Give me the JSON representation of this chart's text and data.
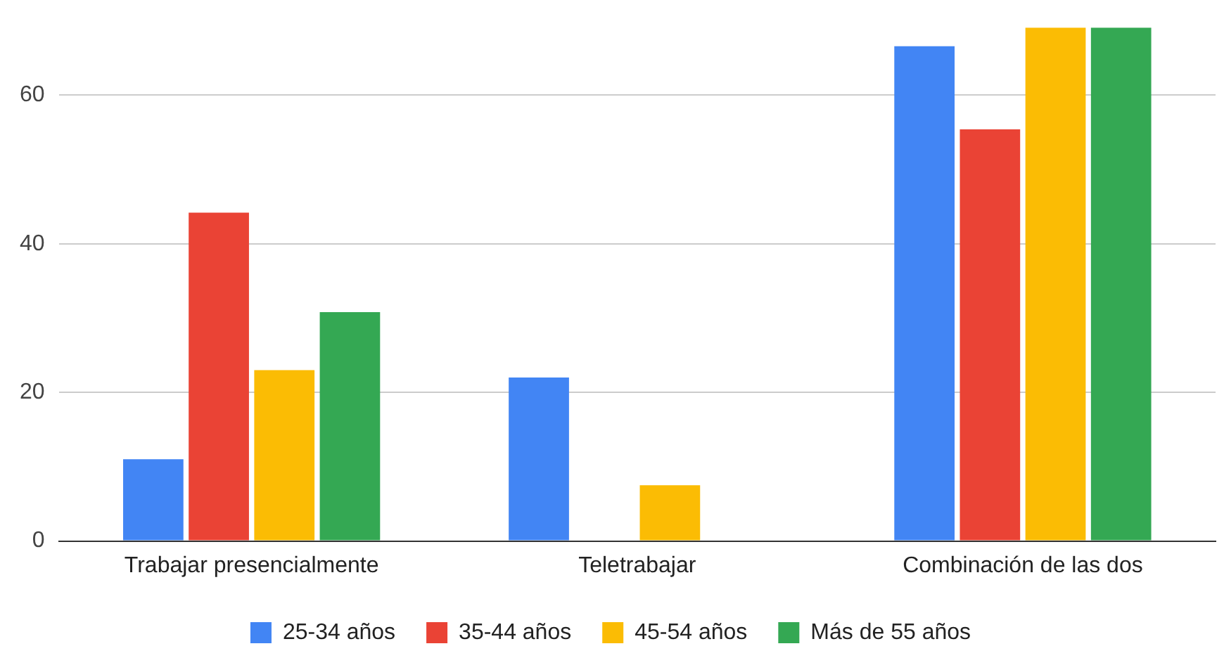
{
  "chart_data": {
    "type": "bar",
    "categories": [
      "Trabajar presencialmente",
      "Teletrabajar",
      "Combinación de las dos"
    ],
    "series": [
      {
        "name": "25-34 años",
        "color": "#4285f4",
        "values": [
          11,
          22,
          66.6
        ]
      },
      {
        "name": "35-44 años",
        "color": "#ea4335",
        "values": [
          44.2,
          0,
          55.4
        ]
      },
      {
        "name": "45-54 años",
        "color": "#fbbc04",
        "values": [
          23,
          7.5,
          69.1
        ]
      },
      {
        "name": "Más de 55 años",
        "color": "#34a853",
        "values": [
          30.8,
          0,
          69.1
        ]
      }
    ],
    "ylim": [
      0,
      69.1
    ],
    "yticks": [
      0,
      20,
      40,
      60
    ],
    "grid": "y",
    "legend": "bottom"
  }
}
